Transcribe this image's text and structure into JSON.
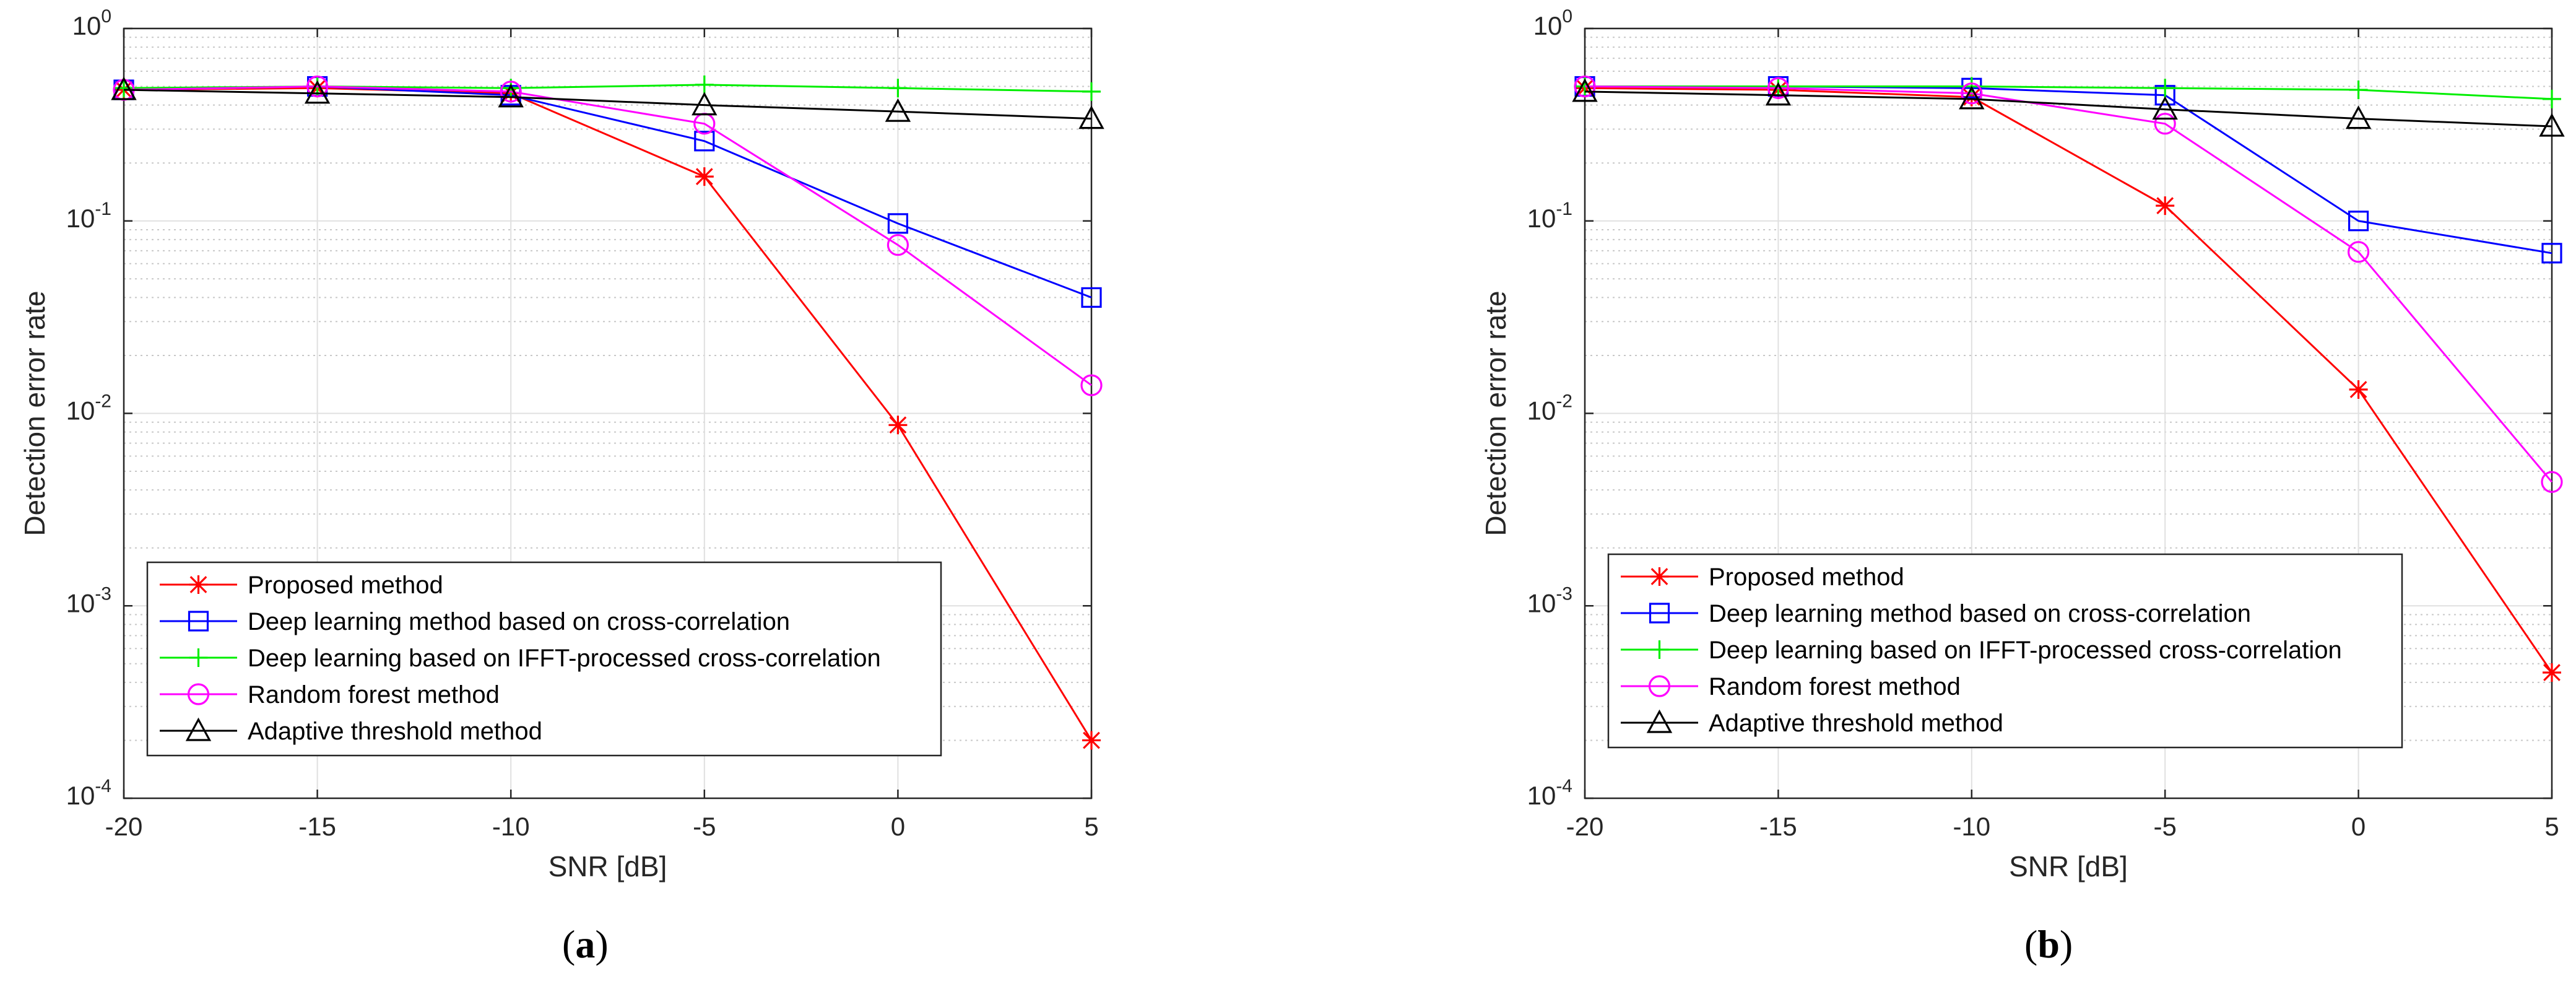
{
  "chart_data": [
    {
      "type": "line",
      "panel_label": "a",
      "xlabel": "SNR [dB]",
      "ylabel": "Detection error rate",
      "yscale": "log",
      "xlim": [
        -20,
        5
      ],
      "ylim": [
        0.0001,
        1
      ],
      "xticks": [
        -20,
        -15,
        -10,
        -5,
        0,
        5
      ],
      "xtick_labels": [
        "-20",
        "-15",
        "-10",
        "-5",
        "0",
        "5"
      ],
      "ytick_labels": [
        {
          "base": "10",
          "exp": "-4"
        },
        {
          "base": "10",
          "exp": "-3"
        },
        {
          "base": "10",
          "exp": "-2"
        },
        {
          "base": "10",
          "exp": "-1"
        },
        {
          "base": "10",
          "exp": "0"
        }
      ],
      "grid": true,
      "legend_position": "bottom-left",
      "x": [
        -20,
        -15,
        -10,
        -5,
        0,
        5
      ],
      "series": [
        {
          "name": "Proposed method",
          "color": "#ff0000",
          "marker": "asterisk",
          "values": [
            0.48,
            0.49,
            0.46,
            0.17,
            0.0087,
            0.0002
          ]
        },
        {
          "name": "Deep learning method based on cross-correlation",
          "color": "#0000ff",
          "marker": "square",
          "values": [
            0.48,
            0.5,
            0.45,
            0.26,
            0.097,
            0.04
          ]
        },
        {
          "name": "Deep learning based on IFFT-processed cross-correlation",
          "color": "#00ee00",
          "marker": "plus",
          "values": [
            0.49,
            0.5,
            0.49,
            0.51,
            0.49,
            0.47
          ]
        },
        {
          "name": "Random forest method",
          "color": "#ff00ff",
          "marker": "circle",
          "values": [
            0.48,
            0.5,
            0.47,
            0.32,
            0.075,
            0.014
          ]
        },
        {
          "name": "Adaptive threshold method",
          "color": "#000000",
          "marker": "triangle",
          "values": [
            0.48,
            0.46,
            0.44,
            0.4,
            0.37,
            0.34
          ]
        }
      ]
    },
    {
      "type": "line",
      "panel_label": "b",
      "xlabel": "SNR [dB]",
      "ylabel": "Detection error rate",
      "yscale": "log",
      "xlim": [
        -20,
        5
      ],
      "ylim": [
        0.0001,
        1
      ],
      "xticks": [
        -20,
        -15,
        -10,
        -5,
        0,
        5
      ],
      "xtick_labels": [
        "-20",
        "-15",
        "-10",
        "-5",
        "0",
        "5"
      ],
      "ytick_labels": [
        {
          "base": "10",
          "exp": "-4"
        },
        {
          "base": "10",
          "exp": "-3"
        },
        {
          "base": "10",
          "exp": "-2"
        },
        {
          "base": "10",
          "exp": "-1"
        },
        {
          "base": "10",
          "exp": "0"
        }
      ],
      "grid": true,
      "legend_position": "bottom-left",
      "x": [
        -20,
        -15,
        -10,
        -5,
        0,
        5
      ],
      "series": [
        {
          "name": "Proposed method",
          "color": "#ff0000",
          "marker": "asterisk",
          "values": [
            0.49,
            0.48,
            0.44,
            0.12,
            0.0133,
            0.00045
          ]
        },
        {
          "name": "Deep learning method based on cross-correlation",
          "color": "#0000ff",
          "marker": "square",
          "values": [
            0.5,
            0.5,
            0.49,
            0.45,
            0.1,
            0.068
          ]
        },
        {
          "name": "Deep learning based on IFFT-processed cross-correlation",
          "color": "#00ee00",
          "marker": "plus",
          "values": [
            0.5,
            0.5,
            0.5,
            0.49,
            0.48,
            0.43
          ]
        },
        {
          "name": "Random forest method",
          "color": "#ff00ff",
          "marker": "circle",
          "values": [
            0.5,
            0.49,
            0.46,
            0.32,
            0.069,
            0.0044
          ]
        },
        {
          "name": "Adaptive threshold method",
          "color": "#000000",
          "marker": "triangle",
          "values": [
            0.47,
            0.45,
            0.43,
            0.38,
            0.34,
            0.31
          ]
        }
      ]
    }
  ]
}
